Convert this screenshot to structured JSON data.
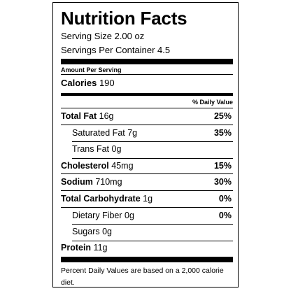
{
  "label": {
    "title": "Nutrition Facts",
    "serving_size": "Serving Size 2.00 oz",
    "servings_per_container": "Servings Per Container 4.5",
    "amount_per_serving": "Amount Per Serving",
    "calories_label": "Calories",
    "calories_value": "190",
    "daily_value_header": "% Daily Value",
    "nutrients": [
      {
        "name": "Total Fat",
        "amount": "16g",
        "percent": "25%"
      },
      {
        "name": "Saturated Fat",
        "amount": "7g",
        "percent": "35%"
      },
      {
        "name": "Trans Fat",
        "amount": "0g",
        "percent": ""
      },
      {
        "name": "Cholesterol",
        "amount": "45mg",
        "percent": "15%"
      },
      {
        "name": "Sodium",
        "amount": "710mg",
        "percent": "30%"
      },
      {
        "name": "Total Carbohydrate",
        "amount": "1g",
        "percent": "0%"
      },
      {
        "name": "Dietary Fiber",
        "amount": "0g",
        "percent": "0%"
      },
      {
        "name": "Sugars",
        "amount": "0g",
        "percent": ""
      }
    ],
    "protein_label": "Protein",
    "protein_value": "11g",
    "footnote": "Percent Daily Values are based on a 2,000 calorie diet."
  }
}
